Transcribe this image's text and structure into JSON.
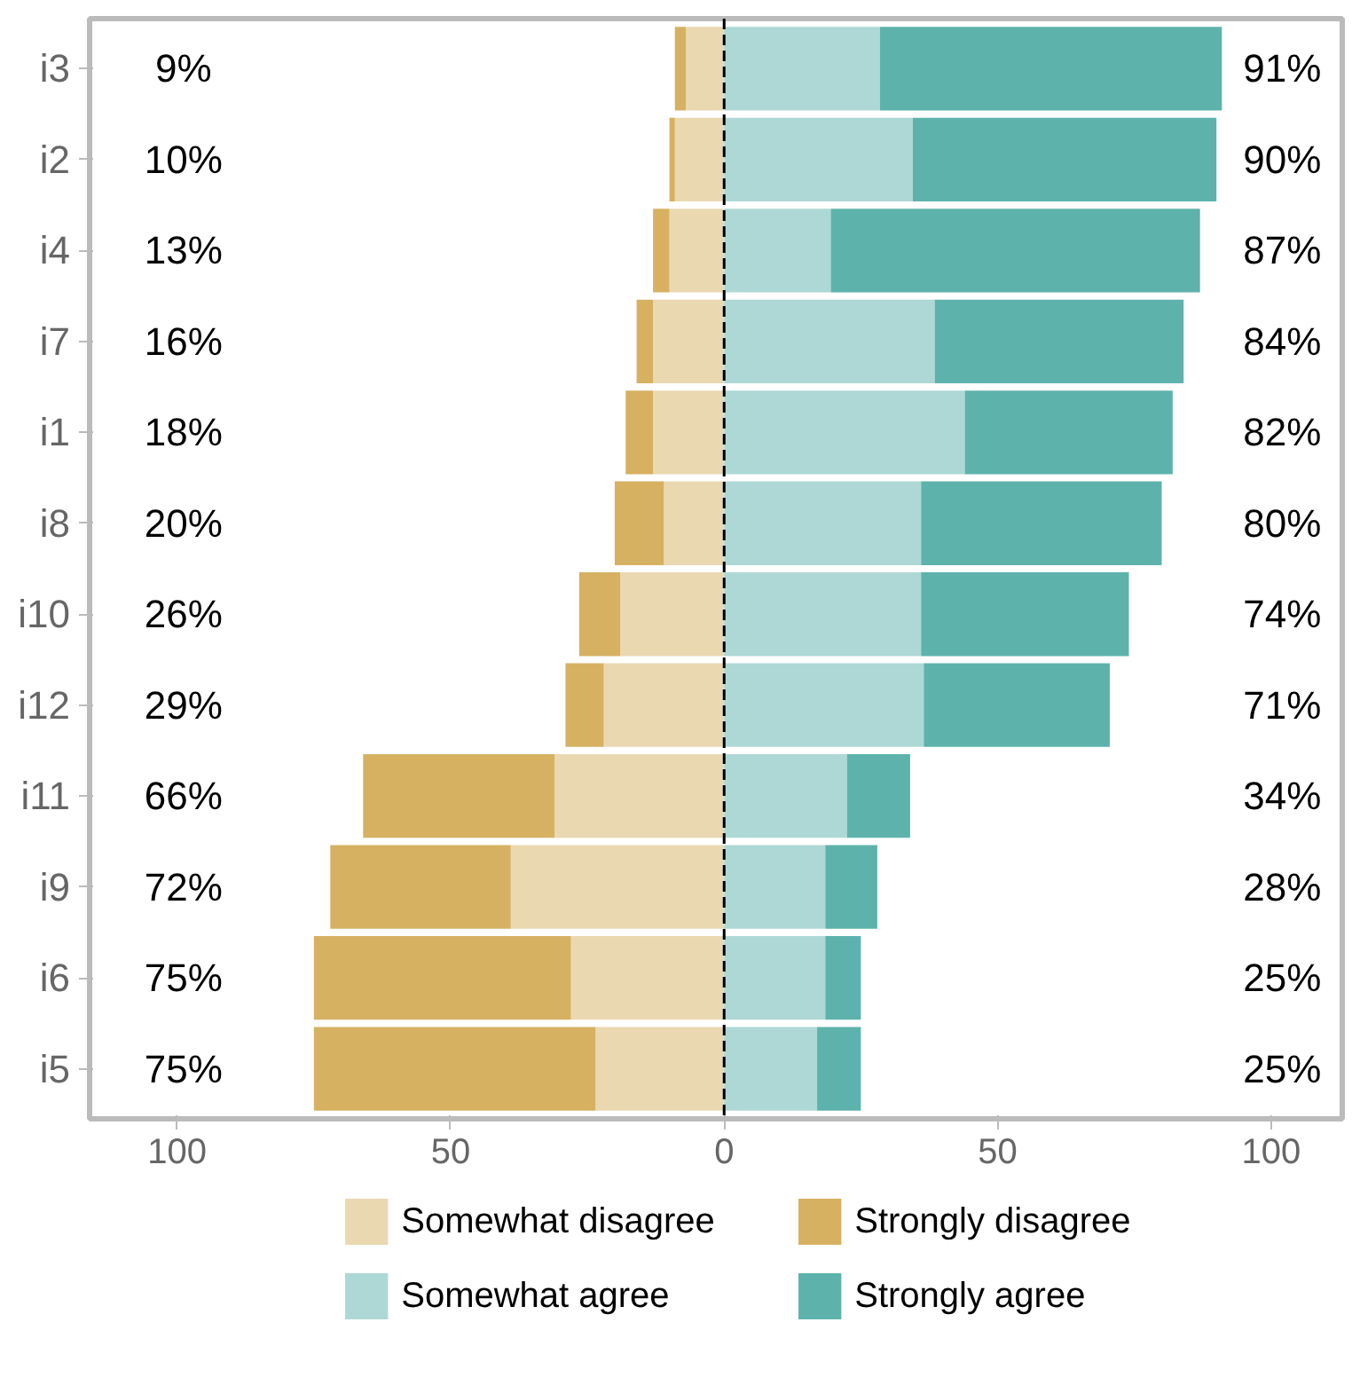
{
  "chart_data": {
    "type": "bar",
    "orientation": "horizontal",
    "stacked": true,
    "categories": [
      "i3",
      "i2",
      "i4",
      "i7",
      "i1",
      "i8",
      "i10",
      "i12",
      "i11",
      "i9",
      "i6",
      "i5"
    ],
    "series": [
      {
        "name": "Somewhat disagree",
        "color": "#ead8b1",
        "values": [
          -7,
          -9,
          -10,
          -13,
          -13,
          -11,
          -19,
          -22,
          -31,
          -39,
          -28,
          -23.5
        ]
      },
      {
        "name": "Strongly disagree",
        "color": "#d6b162",
        "values": [
          -2,
          -1,
          -3,
          -3,
          -5,
          -9,
          -7.5,
          -7,
          -35,
          -33,
          -47,
          -51.5
        ]
      },
      {
        "name": "Somewhat agree",
        "color": "#add8d5",
        "values": [
          28.5,
          34.5,
          19.5,
          38.5,
          44,
          36,
          36,
          36.5,
          22.5,
          18.5,
          18.5,
          17
        ]
      },
      {
        "name": "Strongly agree",
        "color": "#5db3ac",
        "values": [
          62.5,
          55.5,
          67.5,
          45.5,
          38,
          44,
          38,
          34,
          11.5,
          9.5,
          6.5,
          8
        ]
      }
    ],
    "xlim": [
      -116,
      113
    ],
    "xticks": [
      {
        "value": -100,
        "label": "100"
      },
      {
        "value": -50,
        "label": "50"
      },
      0,
      50,
      100
    ],
    "ref_lines": [
      {
        "axis": "x",
        "value": 0,
        "color": "#000000",
        "line_style": "dashed"
      }
    ],
    "annotations": [
      "9%",
      "10%",
      "13%",
      "16%",
      "18%",
      "20%",
      "26%",
      "29%",
      "66%",
      "72%",
      "75%",
      "75%",
      "91%",
      "90%",
      "87%",
      "84%",
      "82%",
      "80%",
      "74%",
      "71%",
      "34%",
      "28%",
      "25%",
      "25%"
    ],
    "grid": false,
    "legend": "bottom"
  }
}
